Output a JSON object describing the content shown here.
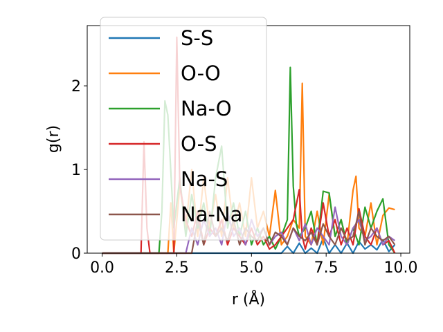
{
  "chart_data": {
    "type": "line",
    "title": "",
    "xlabel": "r (Å)",
    "ylabel": "g(r)",
    "xlim": [
      -0.5,
      10.3
    ],
    "ylim": [
      0,
      2.72
    ],
    "xticks": [
      0.0,
      2.5,
      5.0,
      7.5,
      10.0
    ],
    "xtick_labels": [
      "0.0",
      "2.5",
      "5.0",
      "7.5",
      "10.0"
    ],
    "yticks": [
      0,
      1,
      2
    ],
    "ytick_labels": [
      "0",
      "1",
      "2"
    ],
    "grid": false,
    "legend_position": "upper-left",
    "series": [
      {
        "name": "S-S",
        "color": "#1f77b4",
        "x": [
          0.0,
          5.8,
          6.0,
          6.2,
          6.4,
          6.6,
          6.8,
          7.0,
          7.2,
          7.4,
          7.6,
          7.8,
          8.0,
          8.2,
          8.4,
          8.6,
          8.8,
          9.0,
          9.2,
          9.4,
          9.6,
          9.8
        ],
        "y": [
          0.0,
          0.0,
          0.0,
          0.08,
          0.0,
          0.12,
          0.0,
          0.06,
          0.0,
          0.18,
          0.0,
          0.1,
          0.0,
          0.12,
          0.0,
          0.14,
          0.05,
          0.1,
          0.04,
          0.16,
          0.02,
          0.1
        ]
      },
      {
        "name": "O-O",
        "color": "#ff7f0e",
        "x": [
          0.0,
          2.2,
          2.3,
          2.4,
          2.6,
          2.8,
          3.0,
          3.2,
          3.4,
          3.6,
          3.8,
          4.0,
          4.2,
          4.4,
          4.6,
          4.8,
          5.0,
          5.2,
          5.4,
          5.6,
          5.8,
          6.0,
          6.2,
          6.4,
          6.6,
          6.7,
          6.8,
          7.0,
          7.2,
          7.4,
          7.6,
          7.8,
          8.0,
          8.2,
          8.4,
          8.5,
          8.6,
          8.8,
          9.0,
          9.2,
          9.4,
          9.6,
          9.8
        ],
        "y": [
          0.0,
          0.0,
          0.6,
          0.0,
          0.8,
          0.3,
          1.0,
          0.2,
          0.9,
          0.3,
          0.7,
          0.2,
          0.9,
          0.3,
          0.6,
          0.2,
          0.9,
          0.3,
          0.5,
          0.2,
          0.75,
          0.1,
          0.2,
          0.4,
          0.3,
          2.03,
          0.2,
          0.1,
          0.5,
          0.1,
          0.7,
          0.2,
          0.4,
          0.1,
          0.75,
          0.92,
          0.3,
          0.2,
          0.6,
          0.1,
          0.45,
          0.54,
          0.52
        ]
      },
      {
        "name": "Na-O",
        "color": "#2ca02c",
        "x": [
          0.0,
          1.9,
          2.0,
          2.1,
          2.2,
          2.4,
          2.6,
          2.8,
          3.0,
          3.2,
          3.4,
          3.6,
          3.8,
          4.0,
          4.2,
          4.4,
          4.6,
          4.8,
          5.0,
          5.2,
          5.4,
          5.6,
          5.8,
          6.0,
          6.2,
          6.3,
          6.4,
          6.5,
          6.6,
          6.8,
          7.0,
          7.2,
          7.4,
          7.6,
          7.8,
          8.0,
          8.2,
          8.4,
          8.6,
          8.8,
          9.0,
          9.2,
          9.4,
          9.6,
          9.8
        ],
        "y": [
          0.0,
          0.0,
          0.5,
          1.82,
          1.65,
          0.3,
          0.9,
          0.2,
          0.7,
          0.3,
          0.6,
          0.2,
          0.9,
          1.28,
          0.3,
          0.6,
          0.2,
          0.5,
          0.1,
          0.3,
          0.1,
          0.2,
          0.05,
          0.2,
          0.4,
          2.22,
          0.8,
          0.35,
          0.2,
          0.3,
          0.5,
          0.1,
          0.74,
          0.72,
          0.2,
          0.4,
          0.1,
          0.3,
          0.1,
          0.55,
          0.3,
          0.5,
          0.65,
          0.1,
          0.0
        ]
      },
      {
        "name": "O-S",
        "color": "#d62728",
        "x": [
          0.0,
          1.3,
          1.4,
          1.5,
          1.6,
          2.4,
          2.5,
          2.6,
          2.8,
          3.0,
          3.2,
          3.4,
          3.6,
          3.8,
          4.0,
          4.2,
          4.4,
          4.6,
          4.8,
          5.0,
          5.2,
          5.4,
          5.6,
          5.8,
          6.0,
          6.2,
          6.4,
          6.6,
          6.7,
          6.8,
          7.0,
          7.2,
          7.4,
          7.6,
          7.8,
          8.0,
          8.2,
          8.4,
          8.6,
          8.8,
          9.0,
          9.2,
          9.4,
          9.6,
          9.8
        ],
        "y": [
          0.0,
          0.0,
          1.33,
          0.3,
          0.0,
          0.0,
          2.58,
          0.8,
          0.4,
          0.2,
          0.5,
          0.1,
          0.3,
          0.2,
          0.4,
          0.1,
          0.3,
          0.2,
          0.1,
          0.3,
          0.1,
          0.2,
          0.05,
          0.1,
          0.2,
          0.3,
          0.4,
          0.76,
          0.2,
          0.05,
          0.3,
          0.1,
          0.6,
          0.2,
          0.4,
          0.1,
          0.3,
          0.1,
          0.53,
          0.2,
          0.1,
          0.3,
          0.1,
          0.15,
          0.0
        ]
      },
      {
        "name": "Na-S",
        "color": "#9467bd",
        "x": [
          0.0,
          2.8,
          3.0,
          3.2,
          3.4,
          3.6,
          3.8,
          4.0,
          4.2,
          4.4,
          4.6,
          4.8,
          5.0,
          5.2,
          5.4,
          5.6,
          5.8,
          6.0,
          6.2,
          6.4,
          6.6,
          6.8,
          7.0,
          7.2,
          7.4,
          7.6,
          7.8,
          8.0,
          8.2,
          8.4,
          8.6,
          8.8,
          9.0,
          9.2,
          9.4,
          9.6,
          9.8
        ],
        "y": [
          0.0,
          0.0,
          0.3,
          0.1,
          0.4,
          0.2,
          0.3,
          0.1,
          0.5,
          0.2,
          0.3,
          0.1,
          0.4,
          0.2,
          0.3,
          0.1,
          0.2,
          0.25,
          0.1,
          0.3,
          0.15,
          0.35,
          0.1,
          0.3,
          0.2,
          0.1,
          0.55,
          0.2,
          0.1,
          0.3,
          0.4,
          0.15,
          0.2,
          0.3,
          0.1,
          0.2,
          0.15
        ]
      },
      {
        "name": "Na-Na",
        "color": "#8c564b",
        "x": [
          0.0,
          3.0,
          3.2,
          3.4,
          3.6,
          3.8,
          4.0,
          4.2,
          4.4,
          4.6,
          4.8,
          5.0,
          5.2,
          5.4,
          5.6,
          5.8,
          6.0,
          6.2,
          6.4,
          6.6,
          6.8,
          7.0,
          7.2,
          7.4,
          7.6,
          7.8,
          8.0,
          8.2,
          8.4,
          8.6,
          8.8,
          9.0,
          9.2,
          9.4,
          9.6,
          9.8
        ],
        "y": [
          0.0,
          0.0,
          0.4,
          0.1,
          0.5,
          0.2,
          0.3,
          0.15,
          0.4,
          0.1,
          0.3,
          0.2,
          0.15,
          0.3,
          0.1,
          0.25,
          0.2,
          0.1,
          0.3,
          0.2,
          0.15,
          0.25,
          0.1,
          0.35,
          0.2,
          0.1,
          0.3,
          0.15,
          0.2,
          0.5,
          0.1,
          0.3,
          0.2,
          0.15,
          0.2,
          0.1
        ]
      }
    ]
  }
}
